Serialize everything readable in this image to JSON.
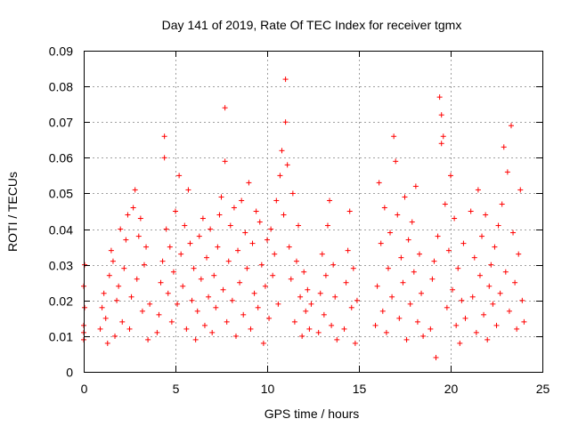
{
  "chart_data": {
    "type": "scatter",
    "title": "Day 141 of 2019, Rate Of TEC Index for receiver tgmx",
    "xlabel": "GPS time / hours",
    "ylabel": "ROTI / TECUs",
    "xlim": [
      0,
      25
    ],
    "ylim": [
      0,
      0.09
    ],
    "x_ticks": [
      0,
      5,
      10,
      15,
      20,
      25
    ],
    "x_tick_labels": [
      "0",
      "5",
      "10",
      "15",
      "20",
      "25"
    ],
    "y_ticks": [
      0,
      0.01,
      0.02,
      0.03,
      0.04,
      0.05,
      0.06,
      0.07,
      0.08,
      0.09
    ],
    "y_tick_labels": [
      "0",
      "0.01",
      "0.02",
      "0.03",
      "0.04",
      "0.05",
      "0.06",
      "0.07",
      "0.08",
      "0.09"
    ],
    "grid": true,
    "marker": "+",
    "color": "#ff0000",
    "series": [
      {
        "name": "ROTI",
        "points": [
          [
            0.0,
            0.009
          ],
          [
            0.0,
            0.013
          ],
          [
            0.05,
            0.018
          ],
          [
            0.0,
            0.024
          ],
          [
            0.05,
            0.03
          ],
          [
            0.0,
            0.011
          ],
          [
            0.9,
            0.012
          ],
          [
            1.0,
            0.018
          ],
          [
            1.1,
            0.022
          ],
          [
            1.2,
            0.015
          ],
          [
            1.3,
            0.008
          ],
          [
            1.4,
            0.027
          ],
          [
            1.5,
            0.034
          ],
          [
            1.6,
            0.031
          ],
          [
            1.7,
            0.01
          ],
          [
            1.8,
            0.02
          ],
          [
            1.9,
            0.024
          ],
          [
            2.0,
            0.04
          ],
          [
            2.1,
            0.014
          ],
          [
            2.2,
            0.029
          ],
          [
            2.3,
            0.037
          ],
          [
            2.4,
            0.044
          ],
          [
            2.5,
            0.012
          ],
          [
            2.6,
            0.021
          ],
          [
            2.7,
            0.046
          ],
          [
            2.8,
            0.051
          ],
          [
            2.9,
            0.026
          ],
          [
            3.0,
            0.038
          ],
          [
            3.1,
            0.043
          ],
          [
            3.2,
            0.017
          ],
          [
            3.3,
            0.03
          ],
          [
            3.4,
            0.035
          ],
          [
            3.5,
            0.009
          ],
          [
            3.6,
            0.019
          ],
          [
            4.0,
            0.011
          ],
          [
            4.1,
            0.016
          ],
          [
            4.2,
            0.025
          ],
          [
            4.3,
            0.031
          ],
          [
            4.4,
            0.06
          ],
          [
            4.4,
            0.066
          ],
          [
            4.5,
            0.04
          ],
          [
            4.6,
            0.022
          ],
          [
            4.7,
            0.035
          ],
          [
            4.8,
            0.014
          ],
          [
            4.9,
            0.028
          ],
          [
            5.0,
            0.045
          ],
          [
            5.1,
            0.019
          ],
          [
            5.2,
            0.055
          ],
          [
            5.3,
            0.033
          ],
          [
            5.4,
            0.024
          ],
          [
            5.5,
            0.041
          ],
          [
            5.6,
            0.012
          ],
          [
            5.7,
            0.051
          ],
          [
            5.8,
            0.036
          ],
          [
            5.9,
            0.02
          ],
          [
            6.0,
            0.029
          ],
          [
            6.1,
            0.009
          ],
          [
            6.2,
            0.017
          ],
          [
            6.3,
            0.038
          ],
          [
            6.4,
            0.026
          ],
          [
            6.5,
            0.043
          ],
          [
            6.6,
            0.013
          ],
          [
            6.7,
            0.032
          ],
          [
            6.8,
            0.021
          ],
          [
            6.9,
            0.04
          ],
          [
            7.0,
            0.011
          ],
          [
            7.1,
            0.027
          ],
          [
            7.2,
            0.018
          ],
          [
            7.3,
            0.035
          ],
          [
            7.4,
            0.044
          ],
          [
            7.5,
            0.049
          ],
          [
            7.6,
            0.023
          ],
          [
            7.7,
            0.074
          ],
          [
            7.7,
            0.059
          ],
          [
            7.8,
            0.014
          ],
          [
            7.9,
            0.031
          ],
          [
            8.0,
            0.041
          ],
          [
            8.1,
            0.02
          ],
          [
            8.2,
            0.046
          ],
          [
            8.3,
            0.01
          ],
          [
            8.4,
            0.034
          ],
          [
            8.5,
            0.025
          ],
          [
            8.6,
            0.048
          ],
          [
            8.7,
            0.016
          ],
          [
            8.8,
            0.039
          ],
          [
            8.9,
            0.029
          ],
          [
            9.0,
            0.053
          ],
          [
            9.1,
            0.012
          ],
          [
            9.2,
            0.036
          ],
          [
            9.3,
            0.022
          ],
          [
            9.4,
            0.045
          ],
          [
            9.5,
            0.018
          ],
          [
            9.6,
            0.042
          ],
          [
            9.7,
            0.03
          ],
          [
            9.8,
            0.008
          ],
          [
            9.9,
            0.024
          ],
          [
            10.0,
            0.037
          ],
          [
            10.1,
            0.015
          ],
          [
            10.2,
            0.04
          ],
          [
            10.3,
            0.027
          ],
          [
            10.4,
            0.033
          ],
          [
            10.5,
            0.048
          ],
          [
            10.6,
            0.019
          ],
          [
            10.7,
            0.055
          ],
          [
            10.8,
            0.062
          ],
          [
            10.9,
            0.044
          ],
          [
            11.0,
            0.082
          ],
          [
            11.0,
            0.07
          ],
          [
            11.1,
            0.058
          ],
          [
            11.2,
            0.035
          ],
          [
            11.3,
            0.026
          ],
          [
            11.4,
            0.05
          ],
          [
            11.5,
            0.014
          ],
          [
            11.6,
            0.031
          ],
          [
            11.7,
            0.041
          ],
          [
            11.8,
            0.021
          ],
          [
            11.9,
            0.01
          ],
          [
            12.0,
            0.028
          ],
          [
            12.1,
            0.017
          ],
          [
            12.2,
            0.023
          ],
          [
            12.3,
            0.012
          ],
          [
            12.4,
            0.019
          ],
          [
            12.8,
            0.011
          ],
          [
            12.9,
            0.022
          ],
          [
            13.0,
            0.033
          ],
          [
            13.1,
            0.016
          ],
          [
            13.2,
            0.027
          ],
          [
            13.3,
            0.041
          ],
          [
            13.4,
            0.048
          ],
          [
            13.5,
            0.013
          ],
          [
            13.6,
            0.03
          ],
          [
            13.7,
            0.021
          ],
          [
            13.8,
            0.009
          ],
          [
            14.2,
            0.012
          ],
          [
            14.3,
            0.025
          ],
          [
            14.4,
            0.034
          ],
          [
            14.5,
            0.045
          ],
          [
            14.6,
            0.018
          ],
          [
            14.7,
            0.029
          ],
          [
            14.8,
            0.008
          ],
          [
            14.9,
            0.02
          ],
          [
            15.9,
            0.013
          ],
          [
            16.0,
            0.024
          ],
          [
            16.1,
            0.053
          ],
          [
            16.2,
            0.036
          ],
          [
            16.3,
            0.017
          ],
          [
            16.4,
            0.046
          ],
          [
            16.5,
            0.011
          ],
          [
            16.6,
            0.029
          ],
          [
            16.7,
            0.039
          ],
          [
            16.8,
            0.021
          ],
          [
            16.9,
            0.066
          ],
          [
            17.0,
            0.059
          ],
          [
            17.1,
            0.044
          ],
          [
            17.2,
            0.015
          ],
          [
            17.3,
            0.032
          ],
          [
            17.4,
            0.025
          ],
          [
            17.5,
            0.049
          ],
          [
            17.6,
            0.009
          ],
          [
            17.7,
            0.037
          ],
          [
            17.8,
            0.019
          ],
          [
            17.9,
            0.042
          ],
          [
            18.0,
            0.028
          ],
          [
            18.1,
            0.052
          ],
          [
            18.2,
            0.014
          ],
          [
            18.3,
            0.033
          ],
          [
            18.4,
            0.022
          ],
          [
            18.5,
            0.01
          ],
          [
            18.9,
            0.012
          ],
          [
            19.0,
            0.026
          ],
          [
            19.1,
            0.031
          ],
          [
            19.2,
            0.004
          ],
          [
            19.3,
            0.038
          ],
          [
            19.4,
            0.077
          ],
          [
            19.5,
            0.072
          ],
          [
            19.5,
            0.064
          ],
          [
            19.6,
            0.066
          ],
          [
            19.7,
            0.047
          ],
          [
            19.8,
            0.018
          ],
          [
            19.9,
            0.034
          ],
          [
            20.0,
            0.055
          ],
          [
            20.1,
            0.023
          ],
          [
            20.2,
            0.043
          ],
          [
            20.3,
            0.013
          ],
          [
            20.4,
            0.029
          ],
          [
            20.5,
            0.008
          ],
          [
            20.6,
            0.02
          ],
          [
            20.7,
            0.036
          ],
          [
            20.8,
            0.015
          ],
          [
            21.1,
            0.045
          ],
          [
            21.2,
            0.021
          ],
          [
            21.3,
            0.032
          ],
          [
            21.4,
            0.011
          ],
          [
            21.5,
            0.051
          ],
          [
            21.6,
            0.027
          ],
          [
            21.7,
            0.038
          ],
          [
            21.8,
            0.016
          ],
          [
            21.9,
            0.044
          ],
          [
            22.0,
            0.009
          ],
          [
            22.1,
            0.024
          ],
          [
            22.2,
            0.03
          ],
          [
            22.3,
            0.019
          ],
          [
            22.4,
            0.035
          ],
          [
            22.5,
            0.013
          ],
          [
            22.6,
            0.041
          ],
          [
            22.7,
            0.022
          ],
          [
            22.8,
            0.047
          ],
          [
            22.9,
            0.063
          ],
          [
            23.0,
            0.028
          ],
          [
            23.1,
            0.056
          ],
          [
            23.2,
            0.017
          ],
          [
            23.3,
            0.069
          ],
          [
            23.4,
            0.039
          ],
          [
            23.5,
            0.025
          ],
          [
            23.6,
            0.012
          ],
          [
            23.7,
            0.033
          ],
          [
            23.8,
            0.051
          ],
          [
            23.9,
            0.02
          ],
          [
            24.0,
            0.014
          ]
        ]
      }
    ]
  }
}
